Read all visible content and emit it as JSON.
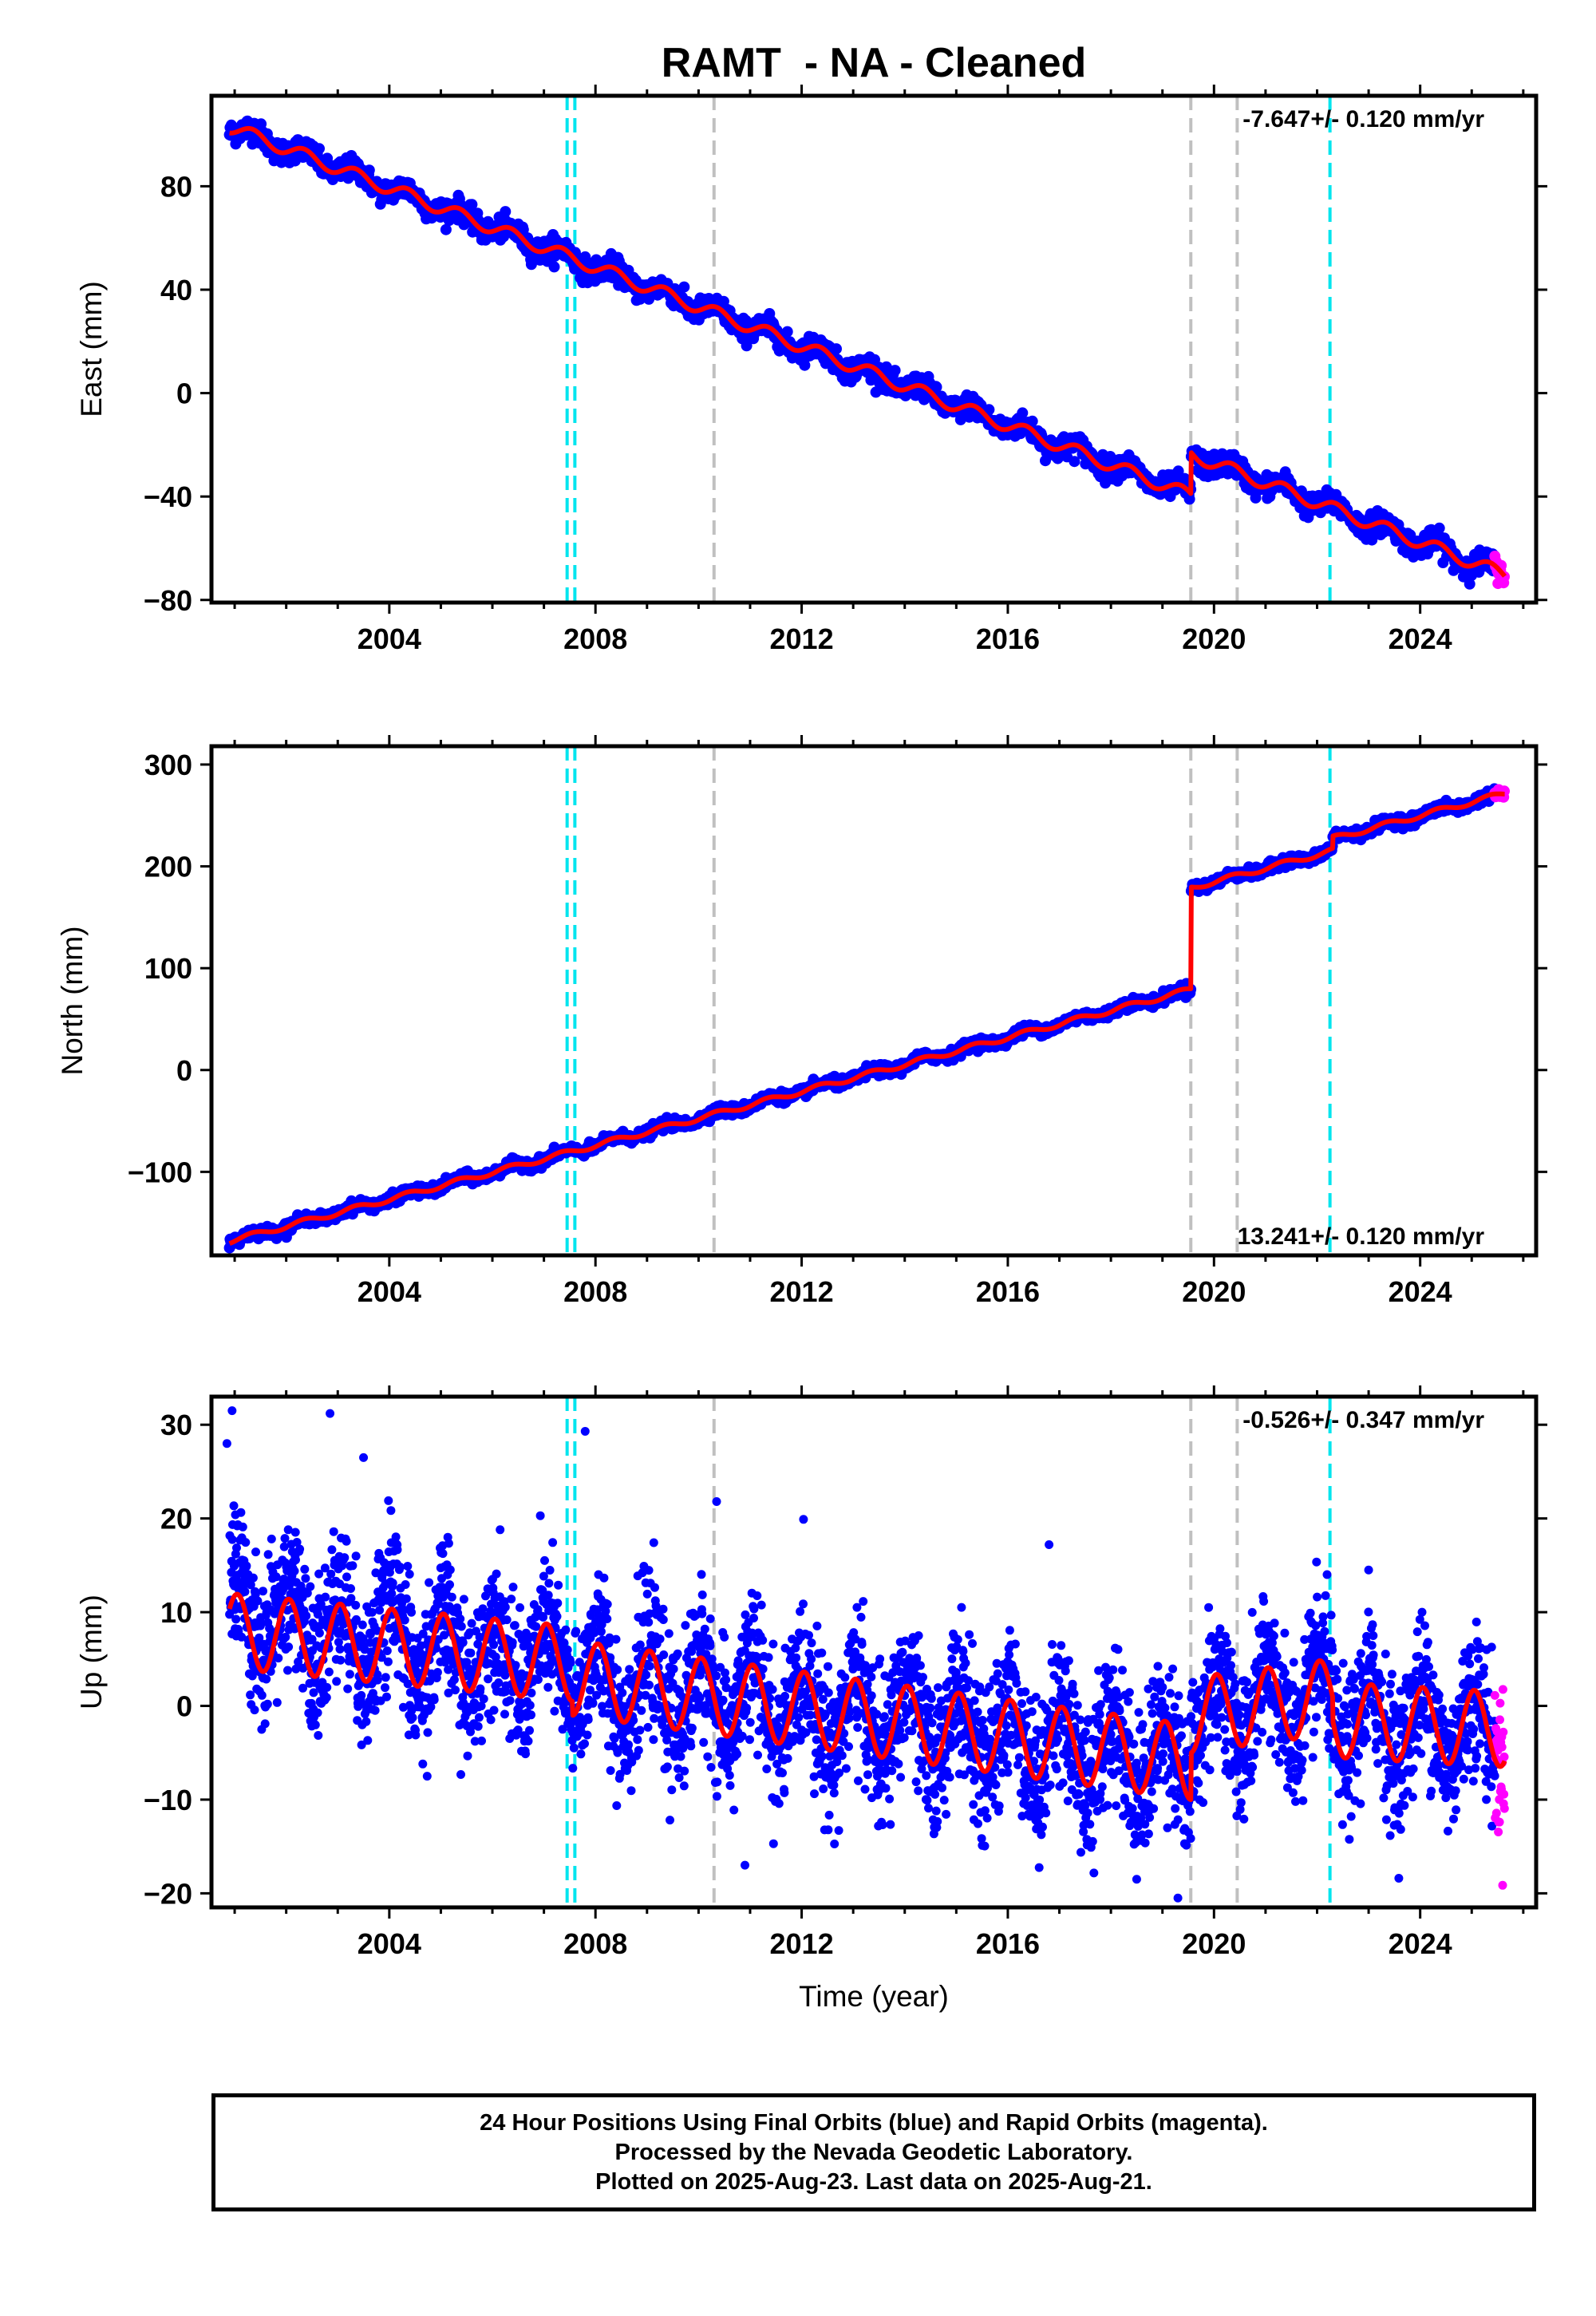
{
  "title": "RAMT  - NA - Cleaned",
  "colors": {
    "final_orbits": "#0000ff",
    "rapid_orbits": "#ff00ff",
    "model": "#ff0000",
    "event_cyan": "#00e5ee",
    "event_gray": "#c0c0c0",
    "frame": "#000000"
  },
  "footer": {
    "line1": "24 Hour Positions Using Final Orbits (blue) and Rapid Orbits (magenta).",
    "line2": "Processed by the Nevada Geodetic Laboratory.",
    "line3": "Plotted on 2025-Aug-23. Last data on 2025-Aug-21."
  },
  "chart_data": [
    {
      "type": "scatter",
      "panel": "east",
      "ylabel": "East (mm)",
      "xlabel": "",
      "rate_text": "-7.647+/- 0.120 mm/yr",
      "rate_position": "top-right",
      "xlim": [
        2000.55,
        2026.25
      ],
      "ylim": [
        -81,
        115
      ],
      "xticks": [
        2004,
        2008,
        2012,
        2016,
        2020,
        2024
      ],
      "yticks": [
        80,
        40,
        0,
        -40,
        -80
      ],
      "yticks_labels": [
        "80",
        "40",
        "0",
        "−40",
        "−80"
      ],
      "data_start": 2000.9,
      "data_end": 2025.64,
      "trend": {
        "value_at_start": 103,
        "rate_mm_per_yr": -7.647
      },
      "offsets": [
        {
          "epoch": 2019.55,
          "size": 16
        }
      ],
      "seasonal_amplitude": 2.5,
      "scatter_noise": 2.2,
      "series": [
        {
          "name": "Final Orbits",
          "color": "#0000ff",
          "x_range": [
            2000.9,
            2025.45
          ]
        },
        {
          "name": "Rapid Orbits",
          "color": "#ff00ff",
          "x_range": [
            2025.45,
            2025.64
          ]
        }
      ],
      "events": {
        "cyan": [
          2007.45,
          2007.6,
          2022.25
        ],
        "gray": [
          2010.3,
          2019.55,
          2020.45
        ]
      },
      "grid": false
    },
    {
      "type": "scatter",
      "panel": "north",
      "ylabel": "North (mm)",
      "xlabel": "",
      "rate_text": "13.241+/- 0.120 mm/yr",
      "rate_position": "bottom-right",
      "xlim": [
        2000.55,
        2026.25
      ],
      "ylim": [
        -182,
        318
      ],
      "xticks": [
        2004,
        2008,
        2012,
        2016,
        2020,
        2024
      ],
      "yticks": [
        300,
        200,
        100,
        0,
        -100
      ],
      "yticks_labels": [
        "300",
        "200",
        "100",
        "0",
        "−100"
      ],
      "data_start": 2000.9,
      "data_end": 2025.64,
      "trend": {
        "value_at_start": -168,
        "rate_mm_per_yr": 13.241
      },
      "offsets": [
        {
          "epoch": 2019.55,
          "size": 100
        },
        {
          "epoch": 2022.3,
          "size": 12
        }
      ],
      "seasonal_amplitude": 2.5,
      "scatter_noise": 2.5,
      "series": [
        {
          "name": "Final Orbits",
          "color": "#0000ff",
          "x_range": [
            2000.9,
            2025.45
          ]
        },
        {
          "name": "Rapid Orbits",
          "color": "#ff00ff",
          "x_range": [
            2025.45,
            2025.64
          ]
        }
      ],
      "events": {
        "cyan": [
          2007.45,
          2007.6,
          2022.25
        ],
        "gray": [
          2010.3,
          2019.55,
          2020.45
        ]
      },
      "grid": false
    },
    {
      "type": "scatter",
      "panel": "up",
      "ylabel": "Up (mm)",
      "xlabel": "Time (year)",
      "rate_text": "-0.526+/- 0.347 mm/yr",
      "rate_position": "top-right",
      "xlim": [
        2000.55,
        2026.25
      ],
      "ylim": [
        -21.5,
        33
      ],
      "xticks": [
        2004,
        2008,
        2012,
        2016,
        2020,
        2024
      ],
      "yticks": [
        30,
        20,
        10,
        0,
        -10,
        -20
      ],
      "yticks_labels": [
        "30",
        "20",
        "10",
        "0",
        "−10",
        "−20"
      ],
      "data_start": 2000.9,
      "data_end": 2025.64,
      "model_segments": [
        {
          "x": [
            2000.9,
            2007.55
          ],
          "mean": [
            8.0,
            4.5
          ],
          "amplitude": 4.0
        },
        {
          "x": [
            2007.55,
            2019.55
          ],
          "mean": [
            3.0,
            -6.0
          ],
          "amplitude": 4.0
        },
        {
          "x": [
            2019.55,
            2022.3
          ],
          "mean": [
            -1.0,
            1.0
          ],
          "amplitude": 4.0
        },
        {
          "x": [
            2022.3,
            2025.64
          ],
          "mean": [
            -1.5,
            -2.5
          ],
          "amplitude": 4.0
        }
      ],
      "scatter_noise": 3.8,
      "outliers": [
        {
          "x": 2000.95,
          "y": 31.5
        },
        {
          "x": 2002.85,
          "y": 31.2
        },
        {
          "x": 2007.8,
          "y": 29.3
        },
        {
          "x": 2010.35,
          "y": 21.8
        },
        {
          "x": 2003.5,
          "y": 26.5
        },
        {
          "x": 2019.3,
          "y": -20.5
        },
        {
          "x": 2018.5,
          "y": -18.5
        },
        {
          "x": 2010.9,
          "y": -17
        },
        {
          "x": 2016.8,
          "y": 17.2
        },
        {
          "x": 2023.0,
          "y": 14.5
        },
        {
          "x": 2000.85,
          "y": 28
        }
      ],
      "series": [
        {
          "name": "Final Orbits",
          "color": "#0000ff",
          "x_range": [
            2000.9,
            2025.45
          ]
        },
        {
          "name": "Rapid Orbits",
          "color": "#ff00ff",
          "x_range": [
            2025.45,
            2025.64
          ]
        }
      ],
      "events": {
        "cyan": [
          2007.45,
          2007.6,
          2022.25
        ],
        "gray": [
          2010.3,
          2019.55,
          2020.45
        ]
      },
      "grid": false
    }
  ]
}
